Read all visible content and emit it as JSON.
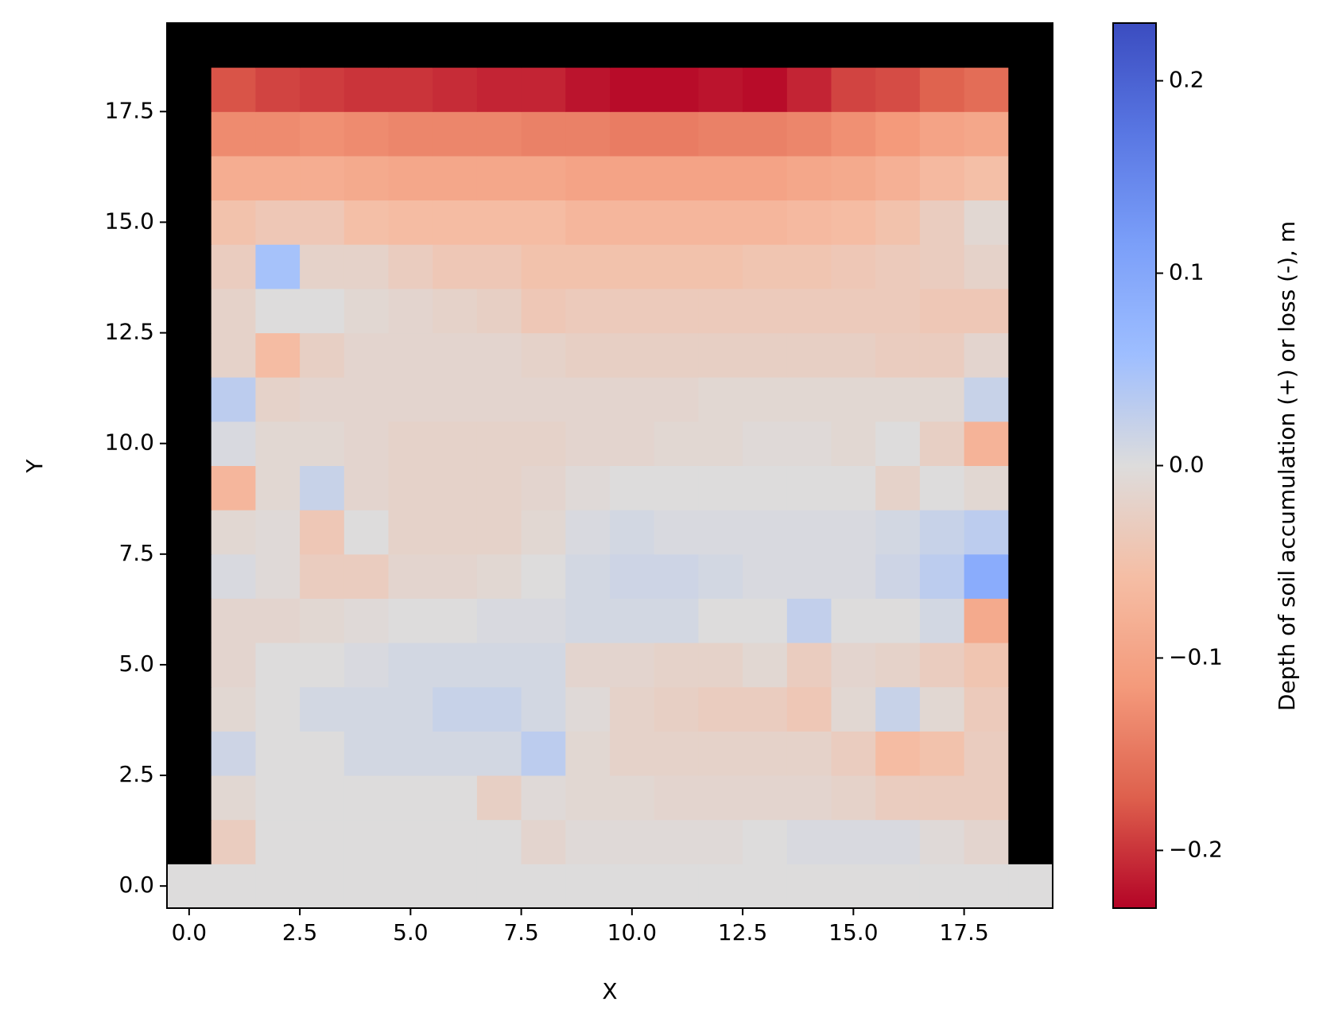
{
  "chart_data": {
    "type": "heatmap",
    "xlabel": "X",
    "ylabel": "Y",
    "colorbar_label": "Depth of soil accumulation (+) or loss (-), m",
    "cmap": "coolwarm_r",
    "mask_color": "#000000",
    "clim": [
      -0.23,
      0.23
    ],
    "xlim": [
      -0.5,
      19.5
    ],
    "ylim": [
      -0.5,
      19.5
    ],
    "xticks": [
      {
        "value": 0,
        "label": "0.0"
      },
      2.5,
      {
        "value": 5,
        "label": "5.0"
      },
      7.5,
      {
        "value": 10,
        "label": "10.0"
      },
      12.5,
      {
        "value": 15,
        "label": "15.0"
      },
      17.5
    ],
    "yticks": [
      {
        "value": 0,
        "label": "0.0"
      },
      2.5,
      {
        "value": 5,
        "label": "5.0"
      },
      7.5,
      {
        "value": 10,
        "label": "10.0"
      },
      12.5,
      {
        "value": 15,
        "label": "15.0"
      },
      17.5
    ],
    "cticks": [
      {
        "value": -0.2,
        "label": "−0.2"
      },
      {
        "value": -0.1,
        "label": "−0.1"
      },
      {
        "value": 0,
        "label": "0.0"
      },
      0.1,
      0.2
    ],
    "x": [
      0,
      1,
      2,
      3,
      4,
      5,
      6,
      7,
      8,
      9,
      10,
      11,
      12,
      13,
      14,
      15,
      16,
      17,
      18,
      19
    ],
    "y": [
      0,
      1,
      2,
      3,
      4,
      5,
      6,
      7,
      8,
      9,
      10,
      11,
      12,
      13,
      14,
      15,
      16,
      17,
      18,
      19
    ],
    "z": [
      [
        0,
        0,
        0,
        0,
        0,
        0,
        0,
        0,
        0,
        0,
        0,
        0,
        0,
        0,
        0,
        0,
        0,
        0,
        0,
        0
      ],
      [
        null,
        -0.03,
        0.0,
        0.0,
        0.0,
        0.0,
        0.0,
        0.0,
        -0.015,
        -0.005,
        -0.005,
        -0.005,
        -0.005,
        0.0,
        0.005,
        0.005,
        0.005,
        -0.005,
        -0.015,
        null
      ],
      [
        null,
        -0.01,
        0.0,
        0.0,
        0.0,
        0.0,
        0.0,
        -0.025,
        -0.005,
        -0.01,
        -0.01,
        -0.015,
        -0.015,
        -0.015,
        -0.015,
        -0.02,
        -0.03,
        -0.03,
        -0.03,
        null
      ],
      [
        null,
        0.015,
        0.0,
        0.0,
        0.01,
        0.01,
        0.01,
        0.01,
        0.03,
        -0.01,
        -0.02,
        -0.02,
        -0.02,
        -0.02,
        -0.02,
        -0.03,
        -0.06,
        -0.05,
        -0.03,
        null
      ],
      [
        null,
        -0.01,
        0.0,
        0.01,
        0.01,
        0.01,
        0.02,
        0.02,
        0.01,
        -0.005,
        -0.02,
        -0.025,
        -0.03,
        -0.03,
        -0.04,
        -0.01,
        0.02,
        -0.01,
        -0.035,
        null
      ],
      [
        null,
        -0.015,
        0.0,
        0.0,
        0.005,
        0.01,
        0.01,
        0.01,
        0.01,
        -0.015,
        -0.015,
        -0.02,
        -0.02,
        -0.01,
        -0.03,
        -0.015,
        -0.02,
        -0.03,
        -0.045,
        null
      ],
      [
        null,
        -0.015,
        -0.015,
        -0.01,
        -0.005,
        0.0,
        0.0,
        0.005,
        0.005,
        0.01,
        0.01,
        0.01,
        0.0,
        0.0,
        0.025,
        0.0,
        0.0,
        0.01,
        -0.09,
        null
      ],
      [
        null,
        0.005,
        -0.005,
        -0.03,
        -0.03,
        -0.015,
        -0.015,
        -0.01,
        0.0,
        0.01,
        0.015,
        0.015,
        0.01,
        0.005,
        0.005,
        0.005,
        0.015,
        0.03,
        0.09,
        null
      ],
      [
        null,
        -0.01,
        -0.005,
        -0.04,
        0.0,
        -0.02,
        -0.02,
        -0.02,
        -0.01,
        0.005,
        0.01,
        0.005,
        0.005,
        0.005,
        0.005,
        0.005,
        0.01,
        0.02,
        0.03,
        null
      ],
      [
        null,
        -0.07,
        -0.01,
        0.02,
        -0.015,
        -0.02,
        -0.02,
        -0.02,
        -0.015,
        -0.005,
        0.0,
        0.0,
        0.0,
        0.0,
        0.0,
        0.0,
        -0.02,
        0.0,
        -0.01,
        null
      ],
      [
        null,
        0.005,
        -0.01,
        -0.01,
        -0.015,
        -0.02,
        -0.02,
        -0.02,
        -0.02,
        -0.015,
        -0.015,
        -0.01,
        -0.01,
        -0.005,
        -0.005,
        -0.01,
        0.0,
        -0.025,
        -0.075,
        null
      ],
      [
        null,
        0.03,
        -0.02,
        -0.015,
        -0.015,
        -0.015,
        -0.015,
        -0.015,
        -0.015,
        -0.015,
        -0.015,
        -0.015,
        -0.01,
        -0.01,
        -0.01,
        -0.01,
        -0.01,
        -0.01,
        0.02,
        null
      ],
      [
        null,
        -0.02,
        -0.06,
        -0.025,
        -0.015,
        -0.015,
        -0.015,
        -0.015,
        -0.02,
        -0.025,
        -0.025,
        -0.025,
        -0.025,
        -0.025,
        -0.025,
        -0.025,
        -0.03,
        -0.03,
        -0.015,
        null
      ],
      [
        null,
        -0.02,
        0.0,
        0.0,
        -0.01,
        -0.015,
        -0.02,
        -0.025,
        -0.04,
        -0.035,
        -0.035,
        -0.035,
        -0.035,
        -0.035,
        -0.035,
        -0.035,
        -0.035,
        -0.04,
        -0.04,
        null
      ],
      [
        null,
        -0.03,
        0.05,
        -0.02,
        -0.02,
        -0.03,
        -0.04,
        -0.04,
        -0.05,
        -0.05,
        -0.05,
        -0.05,
        -0.05,
        -0.045,
        -0.045,
        -0.04,
        -0.035,
        -0.03,
        -0.02,
        null
      ],
      [
        null,
        -0.05,
        -0.04,
        -0.04,
        -0.055,
        -0.06,
        -0.06,
        -0.06,
        -0.06,
        -0.07,
        -0.07,
        -0.07,
        -0.07,
        -0.07,
        -0.065,
        -0.06,
        -0.05,
        -0.03,
        -0.01,
        null
      ],
      [
        null,
        -0.085,
        -0.085,
        -0.085,
        -0.09,
        -0.095,
        -0.095,
        -0.095,
        -0.095,
        -0.1,
        -0.1,
        -0.1,
        -0.1,
        -0.1,
        -0.095,
        -0.09,
        -0.08,
        -0.065,
        -0.055,
        null
      ],
      [
        null,
        -0.13,
        -0.13,
        -0.125,
        -0.13,
        -0.135,
        -0.135,
        -0.135,
        -0.14,
        -0.14,
        -0.145,
        -0.145,
        -0.14,
        -0.14,
        -0.135,
        -0.125,
        -0.115,
        -0.1,
        -0.095,
        null
      ],
      [
        null,
        -0.18,
        -0.19,
        -0.195,
        -0.2,
        -0.2,
        -0.205,
        -0.21,
        -0.21,
        -0.22,
        -0.225,
        -0.225,
        -0.22,
        -0.225,
        -0.21,
        -0.19,
        -0.185,
        -0.17,
        -0.16,
        null
      ],
      [
        null,
        null,
        null,
        null,
        null,
        null,
        null,
        null,
        null,
        null,
        null,
        null,
        null,
        null,
        null,
        null,
        null,
        null,
        null,
        null
      ]
    ]
  }
}
